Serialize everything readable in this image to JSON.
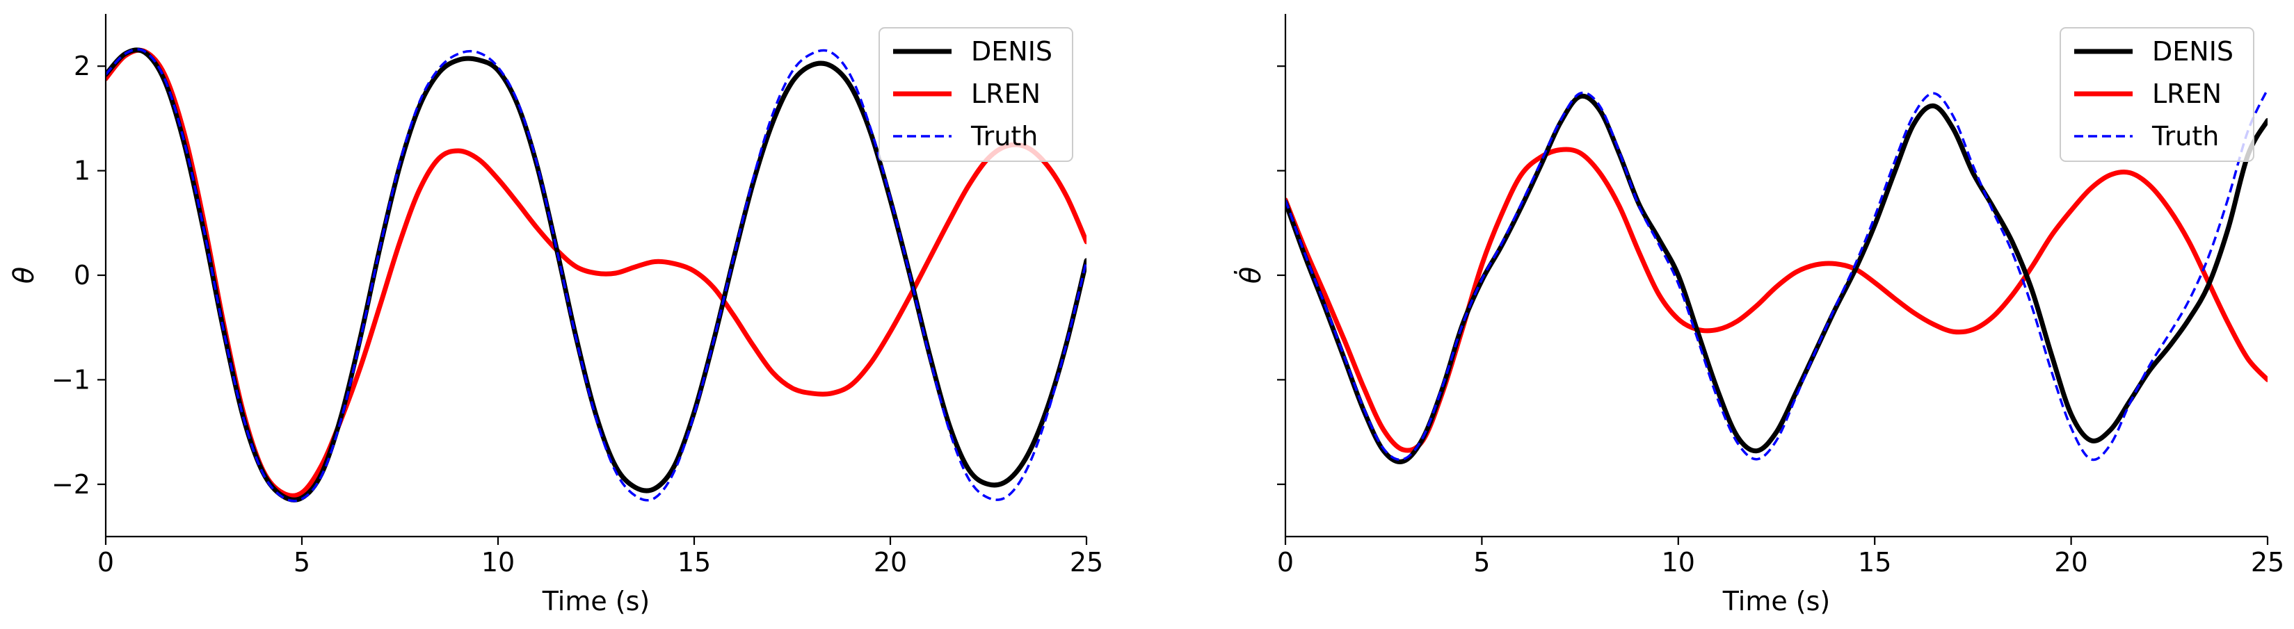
{
  "chart_data": [
    {
      "type": "line",
      "title": "",
      "xlabel": "Time (s)",
      "ylabel": "θ",
      "xlim": [
        0,
        25
      ],
      "ylim": [
        -2.5,
        2.5
      ],
      "xticks": [
        0,
        5,
        10,
        15,
        20,
        25
      ],
      "yticks": [
        -2,
        -1,
        0,
        1,
        2
      ],
      "ytick_labels": [
        "−2",
        "−1",
        "0",
        "1",
        "2"
      ],
      "grid": false,
      "legend": "top-right",
      "x": [
        0,
        0.5,
        1,
        1.5,
        2,
        2.5,
        3,
        3.5,
        4,
        4.5,
        5,
        5.5,
        6,
        6.5,
        7,
        7.5,
        8,
        8.5,
        9,
        9.5,
        10,
        10.5,
        11,
        11.5,
        12,
        12.5,
        13,
        13.5,
        14,
        14.5,
        15,
        15.5,
        16,
        16.5,
        17,
        17.5,
        18,
        18.5,
        19,
        19.5,
        20,
        20.5,
        21,
        21.5,
        22,
        22.5,
        23,
        23.5,
        24,
        24.5,
        25
      ],
      "series": [
        {
          "name": "DENIS",
          "color": "#000000",
          "style": "solid",
          "values": [
            1.92,
            2.12,
            2.13,
            1.86,
            1.26,
            0.42,
            -0.52,
            -1.35,
            -1.88,
            -2.11,
            -2.13,
            -1.9,
            -1.35,
            -0.58,
            0.28,
            1.05,
            1.62,
            1.94,
            2.06,
            2.06,
            1.96,
            1.63,
            1.04,
            0.24,
            -0.61,
            -1.34,
            -1.83,
            -2.03,
            -2.04,
            -1.82,
            -1.31,
            -0.62,
            0.15,
            0.88,
            1.46,
            1.85,
            2.01,
            2.0,
            1.8,
            1.36,
            0.72,
            0.0,
            -0.76,
            -1.43,
            -1.86,
            -2.0,
            -1.96,
            -1.72,
            -1.27,
            -0.64,
            0.14
          ]
        },
        {
          "name": "LREN",
          "color": "#ff0000",
          "style": "solid",
          "values": [
            1.88,
            2.1,
            2.14,
            1.92,
            1.36,
            0.52,
            -0.45,
            -1.3,
            -1.86,
            -2.08,
            -2.08,
            -1.82,
            -1.38,
            -0.87,
            -0.28,
            0.32,
            0.82,
            1.12,
            1.19,
            1.11,
            0.92,
            0.69,
            0.45,
            0.24,
            0.08,
            0.02,
            0.02,
            0.08,
            0.13,
            0.11,
            0.04,
            -0.12,
            -0.38,
            -0.67,
            -0.93,
            -1.08,
            -1.13,
            -1.13,
            -1.05,
            -0.84,
            -0.54,
            -0.2,
            0.16,
            0.52,
            0.86,
            1.12,
            1.24,
            1.22,
            1.05,
            0.75,
            0.32
          ]
        },
        {
          "name": "Truth",
          "color": "#0000ff",
          "style": "dashed",
          "values": [
            1.92,
            2.12,
            2.14,
            1.88,
            1.28,
            0.44,
            -0.52,
            -1.35,
            -1.89,
            -2.12,
            -2.14,
            -1.92,
            -1.38,
            -0.6,
            0.28,
            1.08,
            1.66,
            1.98,
            2.12,
            2.13,
            1.99,
            1.66,
            1.06,
            0.24,
            -0.62,
            -1.37,
            -1.88,
            -2.11,
            -2.13,
            -1.87,
            -1.33,
            -0.62,
            0.16,
            0.92,
            1.54,
            1.95,
            2.12,
            2.13,
            1.9,
            1.4,
            0.74,
            0.0,
            -0.78,
            -1.48,
            -1.95,
            -2.13,
            -2.11,
            -1.84,
            -1.33,
            -0.64,
            0.14
          ]
        }
      ]
    },
    {
      "type": "line",
      "title": "",
      "xlabel": "Time (s)",
      "ylabel": "θ̇",
      "xlim": [
        0,
        25
      ],
      "ylim": [
        -2.5,
        2.5
      ],
      "xticks": [
        0,
        5,
        10,
        15,
        20,
        25
      ],
      "yticks": [
        -2,
        -1,
        0,
        1,
        2
      ],
      "ytick_labels": [],
      "grid": false,
      "legend": "top-right",
      "x": [
        0,
        0.5,
        1,
        1.5,
        2,
        2.5,
        3,
        3.5,
        4,
        4.5,
        5,
        5.5,
        6,
        6.5,
        7,
        7.5,
        8,
        8.5,
        9,
        9.5,
        10,
        10.5,
        11,
        11.5,
        12,
        12.5,
        13,
        13.5,
        14,
        14.5,
        15,
        15.5,
        16,
        16.5,
        17,
        17.5,
        18,
        18.5,
        19,
        19.5,
        20,
        20.5,
        21,
        21.5,
        22,
        22.5,
        23,
        23.5,
        24,
        24.5,
        25
      ],
      "series": [
        {
          "name": "DENIS",
          "color": "#000000",
          "style": "solid",
          "values": [
            0.7,
            0.18,
            -0.3,
            -0.8,
            -1.3,
            -1.68,
            -1.78,
            -1.56,
            -1.08,
            -0.48,
            -0.05,
            0.28,
            0.65,
            1.05,
            1.46,
            1.71,
            1.58,
            1.16,
            0.68,
            0.35,
            0.0,
            -0.55,
            -1.1,
            -1.54,
            -1.68,
            -1.5,
            -1.12,
            -0.72,
            -0.32,
            0.05,
            0.48,
            0.98,
            1.45,
            1.62,
            1.4,
            0.98,
            0.66,
            0.32,
            -0.14,
            -0.76,
            -1.33,
            -1.58,
            -1.48,
            -1.2,
            -0.91,
            -0.68,
            -0.42,
            -0.09,
            0.45,
            1.15,
            1.48
          ]
        },
        {
          "name": "LREN",
          "color": "#ff0000",
          "style": "solid",
          "values": [
            0.72,
            0.25,
            -0.18,
            -0.62,
            -1.08,
            -1.48,
            -1.67,
            -1.58,
            -1.12,
            -0.52,
            0.1,
            0.58,
            0.96,
            1.13,
            1.2,
            1.17,
            0.98,
            0.66,
            0.22,
            -0.18,
            -0.42,
            -0.52,
            -0.52,
            -0.44,
            -0.29,
            -0.11,
            0.03,
            0.1,
            0.11,
            0.06,
            -0.07,
            -0.22,
            -0.36,
            -0.47,
            -0.54,
            -0.52,
            -0.4,
            -0.19,
            0.08,
            0.38,
            0.62,
            0.83,
            0.96,
            0.98,
            0.86,
            0.63,
            0.32,
            -0.07,
            -0.46,
            -0.8,
            -1.0
          ]
        },
        {
          "name": "Truth",
          "color": "#0000ff",
          "style": "dashed",
          "values": [
            0.72,
            0.2,
            -0.28,
            -0.78,
            -1.28,
            -1.66,
            -1.76,
            -1.55,
            -1.06,
            -0.48,
            -0.04,
            0.3,
            0.68,
            1.08,
            1.48,
            1.74,
            1.62,
            1.18,
            0.66,
            0.3,
            -0.08,
            -0.62,
            -1.18,
            -1.6,
            -1.76,
            -1.58,
            -1.16,
            -0.72,
            -0.3,
            0.1,
            0.56,
            1.08,
            1.54,
            1.74,
            1.52,
            1.05,
            0.62,
            0.22,
            -0.3,
            -0.92,
            -1.46,
            -1.76,
            -1.62,
            -1.22,
            -0.86,
            -0.56,
            -0.24,
            0.18,
            0.74,
            1.38,
            1.78
          ]
        }
      ]
    }
  ]
}
